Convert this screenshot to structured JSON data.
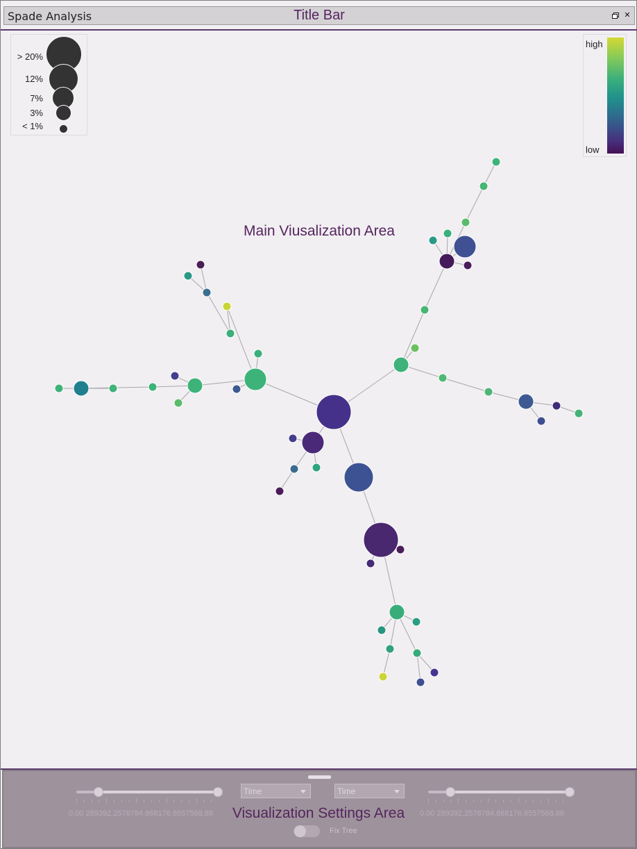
{
  "app": {
    "name": "Spade Analysis",
    "title": "Title Bar",
    "controls": {
      "restore_icon": "restore-icon",
      "close_glyph": "✕"
    }
  },
  "main": {
    "label": "Main Viusalization Area"
  },
  "size_legend": {
    "labels": [
      "> 20%",
      "12%",
      "7%",
      "3%",
      "< 1%"
    ]
  },
  "color_legend": {
    "high": "high",
    "low": "low",
    "colors": [
      "#d4d934",
      "#82c95a",
      "#3aaf7c",
      "#21918c",
      "#2d6f8e",
      "#3b4f8a",
      "#472d7b",
      "#440f54"
    ]
  },
  "tree": {
    "nodes": [
      {
        "id": "root",
        "color": "#45318a",
        "size": "> 20%"
      },
      {
        "id": "l1",
        "color": "#4a2a78",
        "size": "7%"
      },
      {
        "id": "l1a",
        "color": "#433d8b",
        "size": "< 1%"
      },
      {
        "id": "l1b",
        "color": "#3a6b8e",
        "size": "< 1%"
      },
      {
        "id": "l1c",
        "color": "#2ea47e",
        "size": "< 1%"
      },
      {
        "id": "l1d",
        "color": "#4a1c5c",
        "size": "< 1%"
      },
      {
        "id": "d1",
        "color": "#3d5292",
        "size": "12%"
      },
      {
        "id": "d2",
        "color": "#49286f",
        "size": "> 20%"
      },
      {
        "id": "d2a",
        "color": "#4b1e58",
        "size": "< 1%"
      },
      {
        "id": "d2b",
        "color": "#462b75",
        "size": "< 1%"
      },
      {
        "id": "d3",
        "color": "#39ad79",
        "size": "3%"
      },
      {
        "id": "d3a",
        "color": "#28957e",
        "size": "< 1%"
      },
      {
        "id": "d3b",
        "color": "#30a07f",
        "size": "< 1%"
      },
      {
        "id": "d3c",
        "color": "#2b9d82",
        "size": "< 1%"
      },
      {
        "id": "d3d",
        "color": "#36ac7a",
        "size": "< 1%"
      },
      {
        "id": "d3e",
        "color": "#c9d636",
        "size": "< 1%"
      },
      {
        "id": "d3f",
        "color": "#3e4f90",
        "size": "< 1%"
      },
      {
        "id": "d3g",
        "color": "#483393",
        "size": "< 1%"
      },
      {
        "id": "w1",
        "color": "#3db37a",
        "size": "7%"
      },
      {
        "id": "w1a",
        "color": "#3bb07b",
        "size": "< 1%"
      },
      {
        "id": "w1b",
        "color": "#3c5a8f",
        "size": "< 1%"
      },
      {
        "id": "w1c",
        "color": "#47b478",
        "size": "< 1%"
      },
      {
        "id": "w1d",
        "color": "#3caf7b",
        "size": "< 1%"
      },
      {
        "id": "w1e",
        "color": "#c8d634",
        "size": "< 1%"
      },
      {
        "id": "w1f",
        "color": "#3a6f91",
        "size": "< 1%"
      },
      {
        "id": "w1g",
        "color": "#2a9a86",
        "size": "< 1%"
      },
      {
        "id": "w1h",
        "color": "#4b1d56",
        "size": "< 1%"
      },
      {
        "id": "w2",
        "color": "#3db37a",
        "size": "3%"
      },
      {
        "id": "w2a",
        "color": "#443e8c",
        "size": "< 1%"
      },
      {
        "id": "w2b",
        "color": "#5bbb6d",
        "size": "< 1%"
      },
      {
        "id": "w2c",
        "color": "#3db37a",
        "size": "< 1%"
      },
      {
        "id": "w2d",
        "color": "#3fb378",
        "size": "< 1%"
      },
      {
        "id": "w2e",
        "color": "#1f7f8e",
        "size": "3%"
      },
      {
        "id": "w2f",
        "color": "#3db37a",
        "size": "< 1%"
      },
      {
        "id": "e1",
        "color": "#3eb27a",
        "size": "3%"
      },
      {
        "id": "e1a",
        "color": "#6dc062",
        "size": "< 1%"
      },
      {
        "id": "e1b",
        "color": "#4fb873",
        "size": "< 1%"
      },
      {
        "id": "e1c",
        "color": "#4db674",
        "size": "< 1%"
      },
      {
        "id": "e1d",
        "color": "#3d5a92",
        "size": "3%"
      },
      {
        "id": "e1e",
        "color": "#3e4f90",
        "size": "< 1%"
      },
      {
        "id": "e1f",
        "color": "#402b79",
        "size": "< 1%"
      },
      {
        "id": "e1g",
        "color": "#44b276",
        "size": "< 1%"
      },
      {
        "id": "n1",
        "color": "#48b674",
        "size": "< 1%"
      },
      {
        "id": "n2",
        "color": "#441a5a",
        "size": "3%"
      },
      {
        "id": "n2a",
        "color": "#3f5193",
        "size": "7%"
      },
      {
        "id": "n2b",
        "color": "#4b1c5a",
        "size": "< 1%"
      },
      {
        "id": "n2c",
        "color": "#2a9a86",
        "size": "< 1%"
      },
      {
        "id": "n2d",
        "color": "#3aaf7c",
        "size": "< 1%"
      },
      {
        "id": "n3",
        "color": "#5bbb6d",
        "size": "< 1%"
      },
      {
        "id": "n4",
        "color": "#48b674",
        "size": "< 1%"
      },
      {
        "id": "n5",
        "color": "#3db37a",
        "size": "< 1%"
      }
    ],
    "edges": [
      [
        "root",
        "l1"
      ],
      [
        "l1",
        "l1a"
      ],
      [
        "l1",
        "l1b"
      ],
      [
        "l1",
        "l1c"
      ],
      [
        "l1b",
        "l1d"
      ],
      [
        "root",
        "d1"
      ],
      [
        "d1",
        "d2"
      ],
      [
        "d2",
        "d2a"
      ],
      [
        "d2",
        "d2b"
      ],
      [
        "d2",
        "d3"
      ],
      [
        "d3",
        "d3a"
      ],
      [
        "d3",
        "d3b"
      ],
      [
        "d3",
        "d3c"
      ],
      [
        "d3b",
        "d3e"
      ],
      [
        "d3",
        "d3d"
      ],
      [
        "d3d",
        "d3f"
      ],
      [
        "d3d",
        "d3g"
      ],
      [
        "root",
        "w1"
      ],
      [
        "w1",
        "w1a"
      ],
      [
        "w1",
        "w1b"
      ],
      [
        "w1",
        "w1c"
      ],
      [
        "w1c",
        "w1e"
      ],
      [
        "w1c",
        "w1d"
      ],
      [
        "w1d",
        "w1f"
      ],
      [
        "w1f",
        "w1g"
      ],
      [
        "w1f",
        "w1h"
      ],
      [
        "w1",
        "w2"
      ],
      [
        "w2",
        "w2a"
      ],
      [
        "w2",
        "w2b"
      ],
      [
        "w2",
        "w2c"
      ],
      [
        "w2c",
        "w2e"
      ],
      [
        "w2e",
        "w2d"
      ],
      [
        "w2e",
        "w2f"
      ],
      [
        "root",
        "e1"
      ],
      [
        "e1",
        "e1a"
      ],
      [
        "e1",
        "e1b"
      ],
      [
        "e1b",
        "e1c"
      ],
      [
        "e1c",
        "e1d"
      ],
      [
        "e1d",
        "e1e"
      ],
      [
        "e1d",
        "e1f"
      ],
      [
        "e1f",
        "e1g"
      ],
      [
        "e1",
        "n1"
      ],
      [
        "n1",
        "n2"
      ],
      [
        "n2",
        "n2a"
      ],
      [
        "n2",
        "n2b"
      ],
      [
        "n2",
        "n2c"
      ],
      [
        "n2",
        "n2d"
      ],
      [
        "n2",
        "n3"
      ],
      [
        "n3",
        "n4"
      ],
      [
        "n4",
        "n5"
      ]
    ]
  },
  "settings": {
    "label": "Visualization Settings Area",
    "left_slider": {
      "value": 0.0,
      "tick_labels": "0.00  289392.2578784.868176.8557568.88"
    },
    "right_slider": {
      "value": 0.0,
      "tick_labels": "0.00  289392.2578784.868176.8557568.88"
    },
    "select_1": "Time",
    "select_2": "Time",
    "fix_tree_label": "Fix Tree",
    "fix_tree_on": false
  }
}
